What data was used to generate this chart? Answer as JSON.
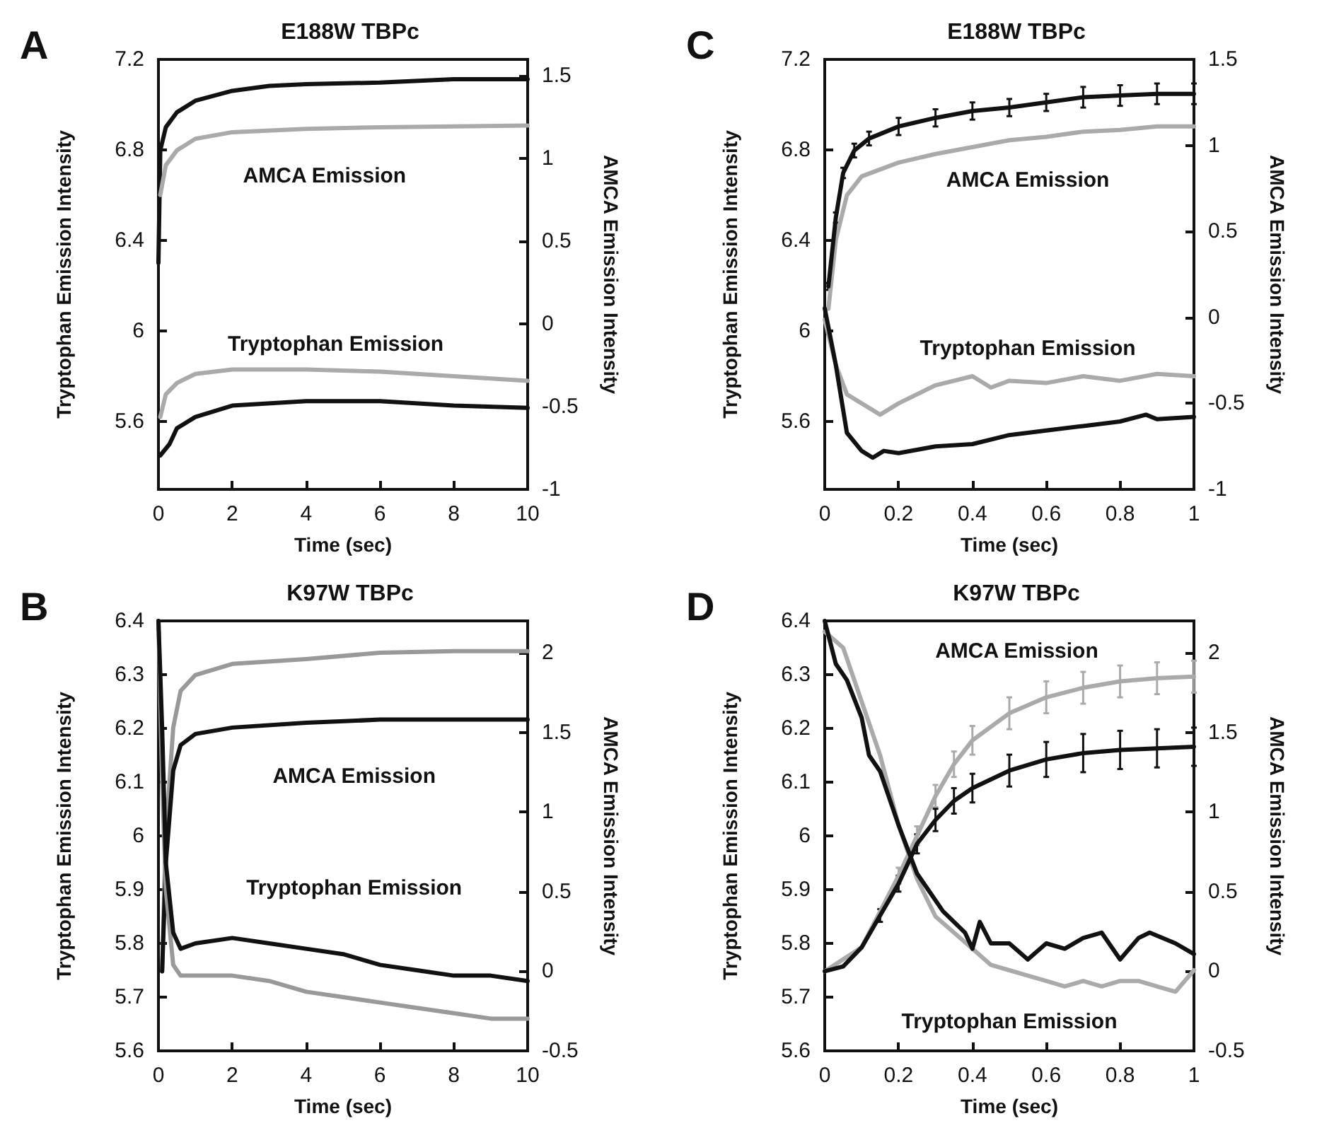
{
  "chart_data": [
    {
      "type": "line",
      "title": "E188W TBPc",
      "xlabel": "Time (sec)",
      "ylabel": "Tryptophan Emission Intensity",
      "y2label": "AMCA Emission Intensity",
      "xlim": [
        0,
        10
      ],
      "xticks": [
        0,
        2,
        4,
        6,
        8,
        10
      ],
      "ylim": [
        5.3,
        7.2
      ],
      "yticks": [
        5.6,
        6,
        6.4,
        6.8,
        7.2
      ],
      "y2lim": [
        -1,
        1.6
      ],
      "y2ticks": [
        -1,
        -0.5,
        0,
        0.5,
        1,
        1.5
      ],
      "series": [
        {
          "color": "#111111",
          "axis": "y2",
          "x": [
            0,
            0.05,
            0.2,
            0.5,
            1,
            2,
            3,
            4,
            6,
            8,
            10
          ],
          "values": [
            0.37,
            1.05,
            1.19,
            1.28,
            1.35,
            1.41,
            1.44,
            1.45,
            1.46,
            1.48,
            1.48
          ]
        },
        {
          "color": "#aaaaaa",
          "axis": "y2",
          "x": [
            0.05,
            0.2,
            0.5,
            1,
            2,
            4,
            6,
            10
          ],
          "values": [
            0.78,
            0.96,
            1.05,
            1.12,
            1.16,
            1.18,
            1.19,
            1.2
          ]
        },
        {
          "color": "#aaaaaa",
          "axis": "y",
          "x": [
            0.05,
            0.2,
            0.5,
            1,
            2,
            4,
            6,
            8,
            10
          ],
          "values": [
            5.62,
            5.72,
            5.77,
            5.81,
            5.83,
            5.83,
            5.82,
            5.8,
            5.78
          ]
        },
        {
          "color": "#111111",
          "axis": "y",
          "x": [
            0.05,
            0.3,
            0.5,
            1,
            2,
            4,
            6,
            8,
            10
          ],
          "values": [
            5.45,
            5.5,
            5.57,
            5.62,
            5.67,
            5.69,
            5.69,
            5.67,
            5.66
          ]
        }
      ],
      "annotations": [
        "A",
        "AMCA Emission",
        "Tryptophan Emission"
      ]
    },
    {
      "type": "line",
      "title": "E188W TBPc",
      "xlabel": "Time (sec)",
      "ylabel": "Tryptophan Emission Intensity",
      "y2label": "AMCA Emission Intensity",
      "xlim": [
        0,
        1
      ],
      "xticks": [
        0,
        0.2,
        0.4,
        0.6,
        0.8,
        1
      ],
      "ylim": [
        5.3,
        7.2
      ],
      "yticks": [
        5.6,
        6,
        6.4,
        6.8,
        7.2
      ],
      "y2lim": [
        -1,
        1.5
      ],
      "y2ticks": [
        -1,
        -0.5,
        0,
        0.5,
        1,
        1.5
      ],
      "series": [
        {
          "color": "#aaaaaa",
          "axis": "y2",
          "x": [
            0.01,
            0.03,
            0.06,
            0.1,
            0.2,
            0.3,
            0.4,
            0.5,
            0.6,
            0.7,
            0.8,
            0.9,
            1
          ],
          "values": [
            0.05,
            0.45,
            0.71,
            0.82,
            0.9,
            0.95,
            0.99,
            1.03,
            1.05,
            1.08,
            1.09,
            1.11,
            1.11
          ]
        },
        {
          "color": "#111111",
          "axis": "y2",
          "x": [
            0.01,
            0.03,
            0.05,
            0.08,
            0.12,
            0.2,
            0.3,
            0.4,
            0.5,
            0.6,
            0.7,
            0.8,
            0.9,
            1
          ],
          "values": [
            0.18,
            0.58,
            0.84,
            0.97,
            1.04,
            1.11,
            1.16,
            1.2,
            1.22,
            1.25,
            1.28,
            1.29,
            1.3,
            1.3
          ],
          "errors": [
            0.02,
            0.03,
            0.03,
            0.04,
            0.04,
            0.05,
            0.05,
            0.05,
            0.05,
            0.05,
            0.06,
            0.06,
            0.06,
            0.06
          ]
        },
        {
          "color": "#aaaaaa",
          "axis": "y",
          "x": [
            0,
            0.03,
            0.06,
            0.1,
            0.15,
            0.2,
            0.3,
            0.4,
            0.45,
            0.5,
            0.6,
            0.7,
            0.8,
            0.9,
            1
          ],
          "values": [
            6.05,
            5.85,
            5.72,
            5.68,
            5.63,
            5.68,
            5.76,
            5.8,
            5.75,
            5.78,
            5.77,
            5.8,
            5.78,
            5.81,
            5.8
          ]
        },
        {
          "color": "#111111",
          "axis": "y",
          "x": [
            0,
            0.03,
            0.06,
            0.1,
            0.13,
            0.16,
            0.2,
            0.3,
            0.4,
            0.5,
            0.6,
            0.7,
            0.8,
            0.87,
            0.9,
            1
          ],
          "values": [
            6.1,
            5.85,
            5.55,
            5.47,
            5.44,
            5.47,
            5.46,
            5.49,
            5.5,
            5.54,
            5.56,
            5.58,
            5.6,
            5.63,
            5.61,
            5.62
          ]
        }
      ],
      "annotations": [
        "C",
        "AMCA Emission",
        "Tryptophan Emission"
      ]
    },
    {
      "type": "line",
      "title": "K97W TBPc",
      "xlabel": "Time (sec)",
      "ylabel": "Tryptophan Emission Intensity",
      "y2label": "AMCA Emission Intensity",
      "xlim": [
        0,
        10
      ],
      "xticks": [
        0,
        2,
        4,
        6,
        8,
        10
      ],
      "ylim": [
        5.6,
        6.4
      ],
      "yticks": [
        5.6,
        5.7,
        5.8,
        5.9,
        6,
        6.1,
        6.2,
        6.3,
        6.4
      ],
      "y2lim": [
        -0.5,
        2.2
      ],
      "y2ticks": [
        -0.5,
        0,
        0.5,
        1,
        1.5,
        2
      ],
      "series": [
        {
          "color": "#999999",
          "axis": "y2",
          "x": [
            0.1,
            0.2,
            0.4,
            0.6,
            1,
            2,
            4,
            6,
            8,
            10
          ],
          "values": [
            0,
            0.85,
            1.53,
            1.76,
            1.86,
            1.93,
            1.96,
            2,
            2.01,
            2.01
          ]
        },
        {
          "color": "#111111",
          "axis": "y2",
          "x": [
            0.1,
            0.2,
            0.4,
            0.6,
            1,
            2,
            4,
            6,
            10
          ],
          "values": [
            0,
            0.68,
            1.26,
            1.42,
            1.49,
            1.53,
            1.56,
            1.58,
            1.58
          ]
        },
        {
          "color": "#999999",
          "axis": "y",
          "x": [
            0,
            0.1,
            0.2,
            0.4,
            0.6,
            1,
            2,
            3,
            4,
            5,
            6,
            7,
            8,
            9,
            10
          ],
          "values": [
            6.4,
            6.1,
            5.9,
            5.76,
            5.74,
            5.74,
            5.74,
            5.73,
            5.71,
            5.7,
            5.69,
            5.68,
            5.67,
            5.66,
            5.66
          ]
        },
        {
          "color": "#111111",
          "axis": "y",
          "x": [
            0,
            0.1,
            0.2,
            0.4,
            0.6,
            1,
            2,
            3,
            4,
            5,
            6,
            7,
            8,
            9,
            10
          ],
          "values": [
            6.4,
            6.2,
            5.95,
            5.82,
            5.79,
            5.8,
            5.81,
            5.8,
            5.79,
            5.78,
            5.76,
            5.75,
            5.74,
            5.74,
            5.73
          ]
        }
      ],
      "annotations": [
        "B",
        "AMCA Emission",
        "Tryptophan Emission"
      ]
    },
    {
      "type": "line",
      "title": "K97W TBPc",
      "xlabel": "Time (sec)",
      "ylabel": "Tryptophan Emission Intensity",
      "y2label": "AMCA Emission Intensity",
      "xlim": [
        0,
        1
      ],
      "xticks": [
        0,
        0.2,
        0.4,
        0.6,
        0.8,
        1
      ],
      "ylim": [
        5.6,
        6.4
      ],
      "yticks": [
        5.6,
        5.7,
        5.8,
        5.9,
        6,
        6.1,
        6.2,
        6.3,
        6.4
      ],
      "y2lim": [
        -0.5,
        2.2
      ],
      "y2ticks": [
        -0.5,
        0,
        0.5,
        1,
        1.5,
        2
      ],
      "series": [
        {
          "color": "#aaaaaa",
          "axis": "y2",
          "x": [
            0,
            0.1,
            0.2,
            0.25,
            0.3,
            0.35,
            0.4,
            0.5,
            0.6,
            0.7,
            0.8,
            0.9,
            1
          ],
          "values": [
            0,
            0.15,
            0.6,
            0.85,
            1.1,
            1.3,
            1.45,
            1.62,
            1.72,
            1.78,
            1.82,
            1.84,
            1.85
          ],
          "errors": [
            null,
            null,
            0.05,
            0.06,
            0.07,
            0.08,
            0.09,
            0.1,
            0.1,
            0.1,
            0.1,
            0.1,
            0.1
          ]
        },
        {
          "color": "#aaaaaa",
          "axis": "y",
          "x": [
            0,
            0.05,
            0.1,
            0.15,
            0.2,
            0.25,
            0.3,
            0.35,
            0.4,
            0.45,
            0.5,
            0.55,
            0.6,
            0.65,
            0.7,
            0.75,
            0.8,
            0.85,
            0.9,
            0.95,
            1
          ],
          "values": [
            6.38,
            6.35,
            6.25,
            6.15,
            6.02,
            5.92,
            5.85,
            5.82,
            5.79,
            5.76,
            5.75,
            5.74,
            5.73,
            5.72,
            5.73,
            5.72,
            5.73,
            5.73,
            5.72,
            5.71,
            5.75
          ]
        },
        {
          "color": "#111111",
          "axis": "y2",
          "x": [
            0,
            0.05,
            0.1,
            0.15,
            0.2,
            0.25,
            0.3,
            0.35,
            0.4,
            0.5,
            0.6,
            0.7,
            0.8,
            0.9,
            1
          ],
          "values": [
            0,
            0.03,
            0.15,
            0.35,
            0.55,
            0.8,
            0.95,
            1.07,
            1.15,
            1.26,
            1.33,
            1.37,
            1.39,
            1.4,
            1.41
          ],
          "errors": [
            null,
            null,
            null,
            0.04,
            0.05,
            0.06,
            0.07,
            0.08,
            0.09,
            0.1,
            0.11,
            0.12,
            0.12,
            0.12,
            0.12
          ]
        },
        {
          "color": "#111111",
          "axis": "y",
          "x": [
            0,
            0.03,
            0.06,
            0.1,
            0.12,
            0.15,
            0.2,
            0.25,
            0.28,
            0.32,
            0.38,
            0.4,
            0.42,
            0.45,
            0.5,
            0.55,
            0.6,
            0.65,
            0.7,
            0.75,
            0.8,
            0.85,
            0.88,
            0.95,
            1
          ],
          "values": [
            6.4,
            6.32,
            6.29,
            6.22,
            6.15,
            6.12,
            6.02,
            5.93,
            5.9,
            5.86,
            5.82,
            5.79,
            5.84,
            5.8,
            5.8,
            5.77,
            5.8,
            5.79,
            5.81,
            5.82,
            5.77,
            5.81,
            5.82,
            5.8,
            5.78
          ]
        }
      ],
      "annotations": [
        "D",
        "AMCA Emission",
        "Tryptophan Emission"
      ]
    }
  ]
}
